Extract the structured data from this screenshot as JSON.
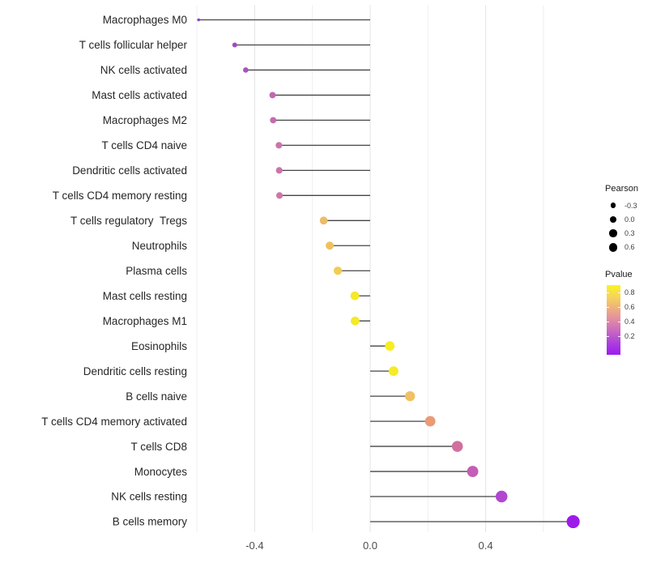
{
  "chart_data": {
    "type": "lollipop",
    "description": "Horizontal lollipop chart of Pearson correlation per immune cell type; dot size maps Pearson value, dot color maps P-value (yellow high to violet low)",
    "xlabel": "",
    "ylabel": "",
    "xlim": [
      -0.66,
      0.77
    ],
    "grid": "vertical-only",
    "x_ticks_major": [
      {
        "value": -0.4,
        "label": "-0.4"
      },
      {
        "value": 0.0,
        "label": "0.0"
      },
      {
        "value": 0.4,
        "label": "0.4"
      }
    ],
    "x_ticks_minor": [
      -0.6,
      -0.2,
      0.2,
      0.6
    ],
    "rows": [
      {
        "label": "Macrophages M0",
        "pearson": -0.594,
        "dot_color": "#9239CD"
      },
      {
        "label": "T cells follicular helper",
        "pearson": -0.469,
        "dot_color": "#A14CBE"
      },
      {
        "label": "NK cells activated",
        "pearson": -0.431,
        "dot_color": "#A953B9"
      },
      {
        "label": "Mast cells activated",
        "pearson": -0.338,
        "dot_color": "#C268B1"
      },
      {
        "label": "Macrophages M2",
        "pearson": -0.336,
        "dot_color": "#C56BAE"
      },
      {
        "label": "T cells CD4 naive",
        "pearson": -0.316,
        "dot_color": "#CC73AA"
      },
      {
        "label": "Dendritic cells activated",
        "pearson": -0.315,
        "dot_color": "#CC73AA"
      },
      {
        "label": "T cells CD4 memory resting",
        "pearson": -0.314,
        "dot_color": "#CE76A8"
      },
      {
        "label": "T cells regulatory  Tregs",
        "pearson": -0.161,
        "dot_color": "#ECBC67"
      },
      {
        "label": "Neutrophils",
        "pearson": -0.14,
        "dot_color": "#EEC15F"
      },
      {
        "label": "Plasma cells",
        "pearson": -0.112,
        "dot_color": "#F1CD54"
      },
      {
        "label": "Mast cells resting",
        "pearson": -0.053,
        "dot_color": "#F5E92A"
      },
      {
        "label": "Macrophages M1",
        "pearson": -0.052,
        "dot_color": "#F5E92A"
      },
      {
        "label": "Eosinophils",
        "pearson": 0.068,
        "dot_color": "#F7ED1F"
      },
      {
        "label": "Dendritic cells resting",
        "pearson": 0.081,
        "dot_color": "#F6EB24"
      },
      {
        "label": "B cells naive",
        "pearson": 0.138,
        "dot_color": "#EFC162"
      },
      {
        "label": "T cells CD4 memory activated",
        "pearson": 0.208,
        "dot_color": "#E99B76"
      },
      {
        "label": "T cells CD8",
        "pearson": 0.302,
        "dot_color": "#D16F9D"
      },
      {
        "label": "Monocytes",
        "pearson": 0.355,
        "dot_color": "#C45DB4"
      },
      {
        "label": "NK cells resting",
        "pearson": 0.455,
        "dot_color": "#B147D1"
      },
      {
        "label": "B cells memory",
        "pearson": 0.703,
        "dot_color": "#9D1BE9"
      }
    ],
    "legend": {
      "pearson_title": "Pearson",
      "size_items": [
        {
          "label": "-0.3"
        },
        {
          "label": "0.0"
        },
        {
          "label": "0.3"
        },
        {
          "label": "0.6"
        }
      ],
      "pvalue_title": "Pvalue",
      "pvalue_tick_labels": [
        "0.8",
        "0.6",
        "0.4",
        "0.2"
      ],
      "gradient_colors_top_to_bottom": [
        "#FBF420",
        "#F6D45B",
        "#EFAF7E",
        "#E18BA4",
        "#C767C3",
        "#AC3FDC",
        "#9B1BF2"
      ]
    },
    "colors": {
      "stem": "#454545",
      "grid_major": "#e3e3e3",
      "grid_minor": "#efefef",
      "axis_text": "#4d4d4d",
      "category_text": "#262626",
      "legend_dot": "#000000"
    }
  }
}
